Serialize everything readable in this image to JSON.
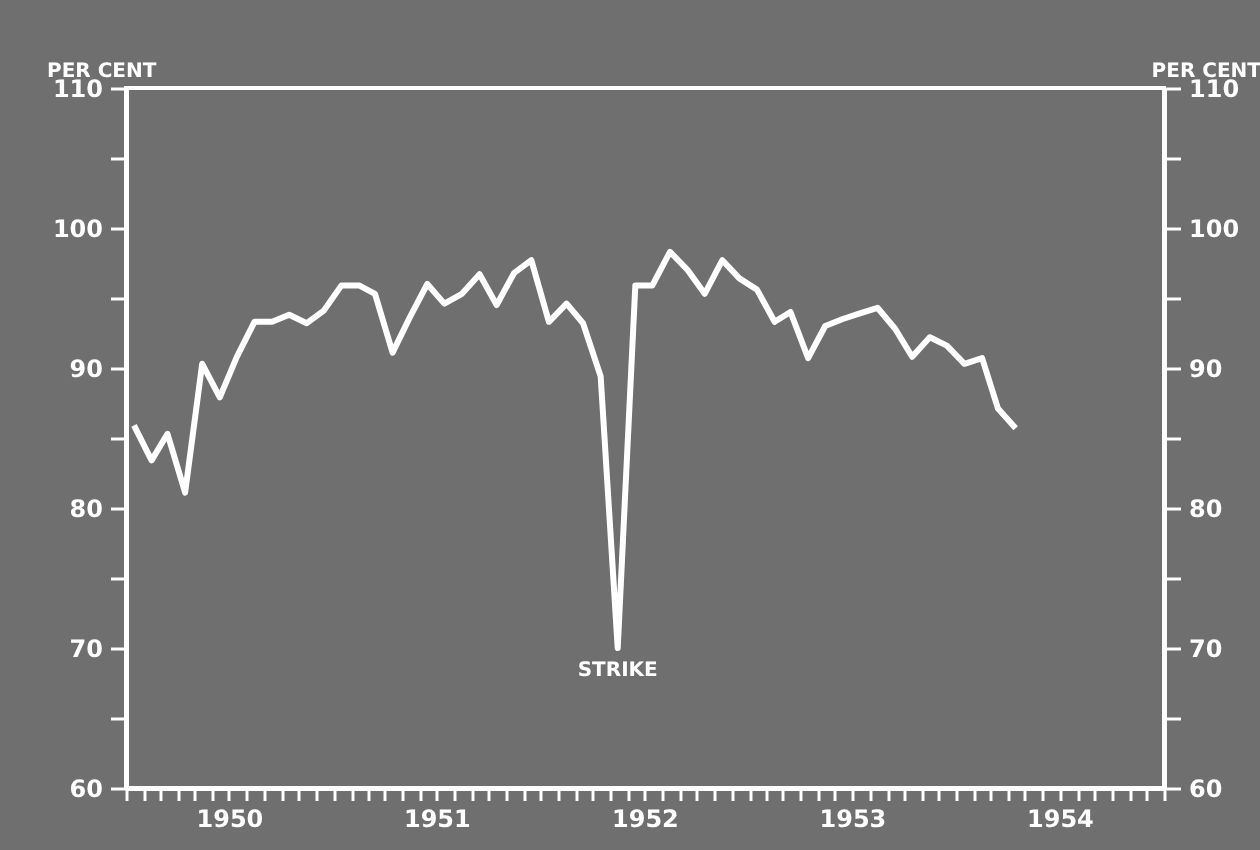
{
  "chart_data": {
    "type": "line",
    "xlim": [
      "1950-01-01",
      "1955-01-01"
    ],
    "x": [
      "1950-01-15",
      "1950-02-15",
      "1950-03-15",
      "1950-04-15",
      "1950-05-15",
      "1950-06-15",
      "1950-07-15",
      "1950-08-15",
      "1950-09-15",
      "1950-10-15",
      "1950-11-15",
      "1950-12-15",
      "1951-01-15",
      "1951-02-15",
      "1951-03-15",
      "1951-04-15",
      "1951-05-15",
      "1951-06-15",
      "1951-07-15",
      "1951-08-15",
      "1951-09-15",
      "1951-10-15",
      "1951-11-15",
      "1951-12-15",
      "1952-01-15",
      "1952-02-15",
      "1952-03-15",
      "1952-04-15",
      "1952-05-15",
      "1952-06-15",
      "1952-07-15",
      "1952-08-15",
      "1952-09-15",
      "1952-10-15",
      "1952-11-15",
      "1952-12-15",
      "1953-01-15",
      "1953-02-15",
      "1953-03-15",
      "1953-04-15",
      "1953-05-15",
      "1953-06-15",
      "1953-07-15",
      "1953-08-15",
      "1953-09-15",
      "1953-10-15",
      "1953-11-15",
      "1953-12-15",
      "1954-01-15",
      "1954-02-15",
      "1954-03-15",
      "1954-04-15"
    ],
    "series": [
      {
        "color": "#ffffff",
        "values": [
          85.9,
          83.4,
          85.3,
          81.1,
          90.3,
          87.9,
          90.8,
          93.3,
          93.3,
          93.8,
          93.2,
          94.1,
          95.9,
          95.9,
          95.3,
          91.1,
          93.6,
          96.0,
          94.6,
          95.3,
          96.7,
          94.5,
          96.8,
          97.7,
          93.3,
          94.6,
          93.2,
          89.4,
          70,
          95.9,
          95.9,
          98.3,
          97.0,
          95.3,
          97.7,
          96.4,
          95.6,
          93.3,
          94.0,
          90.7,
          93.0,
          93.5,
          93.9,
          94.3,
          92.8,
          90.8,
          92.2,
          91.6,
          90.3,
          90.7,
          87.1,
          85.7
        ]
      }
    ],
    "ylabel": "PER CENT",
    "y2label": "PER CENT",
    "ylim": [
      60,
      110
    ],
    "yticks": [
      60,
      {
        "value": 65,
        "label": null
      },
      70,
      {
        "value": 75,
        "label": null
      },
      80,
      {
        "value": 85,
        "label": null
      },
      90,
      {
        "value": 95,
        "label": null
      },
      100,
      {
        "value": 105,
        "label": null
      },
      110
    ],
    "y2lim": [
      60,
      110
    ],
    "y2ticks": [
      60,
      {
        "value": 65,
        "label": null
      },
      70,
      {
        "value": 75,
        "label": null
      },
      80,
      {
        "value": 85,
        "label": null
      },
      90,
      {
        "value": 95,
        "label": null
      },
      100,
      {
        "value": 105,
        "label": null
      },
      110
    ],
    "xticks": [
      {
        "value": "1950-01-01",
        "label": null
      },
      {
        "value": "1950-02-01",
        "label": null
      },
      {
        "value": "1950-03-01",
        "label": null
      },
      {
        "value": "1950-04-01",
        "label": null
      },
      {
        "value": "1950-05-01",
        "label": null
      },
      {
        "value": "1950-06-01",
        "label": null
      },
      {
        "value": "1950-07-01",
        "label": "1950"
      },
      {
        "value": "1950-08-01",
        "label": null
      },
      {
        "value": "1950-09-01",
        "label": null
      },
      {
        "value": "1950-10-01",
        "label": null
      },
      {
        "value": "1950-11-01",
        "label": null
      },
      {
        "value": "1950-12-01",
        "label": null
      },
      {
        "value": "1951-01-01",
        "label": null
      },
      {
        "value": "1951-02-01",
        "label": null
      },
      {
        "value": "1951-03-01",
        "label": null
      },
      {
        "value": "1951-04-01",
        "label": null
      },
      {
        "value": "1951-05-01",
        "label": null
      },
      {
        "value": "1951-06-01",
        "label": null
      },
      {
        "value": "1951-07-01",
        "label": "1951"
      },
      {
        "value": "1951-08-01",
        "label": null
      },
      {
        "value": "1951-09-01",
        "label": null
      },
      {
        "value": "1951-10-01",
        "label": null
      },
      {
        "value": "1951-11-01",
        "label": null
      },
      {
        "value": "1951-12-01",
        "label": null
      },
      {
        "value": "1952-01-01",
        "label": null
      },
      {
        "value": "1952-02-01",
        "label": null
      },
      {
        "value": "1952-03-01",
        "label": null
      },
      {
        "value": "1952-04-01",
        "label": null
      },
      {
        "value": "1952-05-01",
        "label": null
      },
      {
        "value": "1952-06-01",
        "label": null
      },
      {
        "value": "1952-07-01",
        "label": "1952"
      },
      {
        "value": "1952-08-01",
        "label": null
      },
      {
        "value": "1952-09-01",
        "label": null
      },
      {
        "value": "1952-10-01",
        "label": null
      },
      {
        "value": "1952-11-01",
        "label": null
      },
      {
        "value": "1952-12-01",
        "label": null
      },
      {
        "value": "1953-01-01",
        "label": null
      },
      {
        "value": "1953-02-01",
        "label": null
      },
      {
        "value": "1953-03-01",
        "label": null
      },
      {
        "value": "1953-04-01",
        "label": null
      },
      {
        "value": "1953-05-01",
        "label": null
      },
      {
        "value": "1953-06-01",
        "label": null
      },
      {
        "value": "1953-07-01",
        "label": "1953"
      },
      {
        "value": "1953-08-01",
        "label": null
      },
      {
        "value": "1953-09-01",
        "label": null
      },
      {
        "value": "1953-10-01",
        "label": null
      },
      {
        "value": "1953-11-01",
        "label": null
      },
      {
        "value": "1953-12-01",
        "label": null
      },
      {
        "value": "1954-01-01",
        "label": null
      },
      {
        "value": "1954-02-01",
        "label": null
      },
      {
        "value": "1954-03-01",
        "label": null
      },
      {
        "value": "1954-04-01",
        "label": null
      },
      {
        "value": "1954-05-01",
        "label": null
      },
      {
        "value": "1954-06-01",
        "label": null
      },
      {
        "value": "1954-07-01",
        "label": "1954"
      },
      {
        "value": "1954-08-01",
        "label": null
      },
      {
        "value": "1954-09-01",
        "label": null
      },
      {
        "value": "1954-10-01",
        "label": null
      },
      {
        "value": "1954-11-01",
        "label": null
      },
      {
        "value": "1954-12-01",
        "label": null
      },
      {
        "value": "1955-01-01",
        "label": null
      }
    ],
    "annotations": [
      {
        "text": "STRIKE",
        "x": "1952-05-15",
        "y": 70
      }
    ],
    "grid": false,
    "line_style": "solid"
  }
}
